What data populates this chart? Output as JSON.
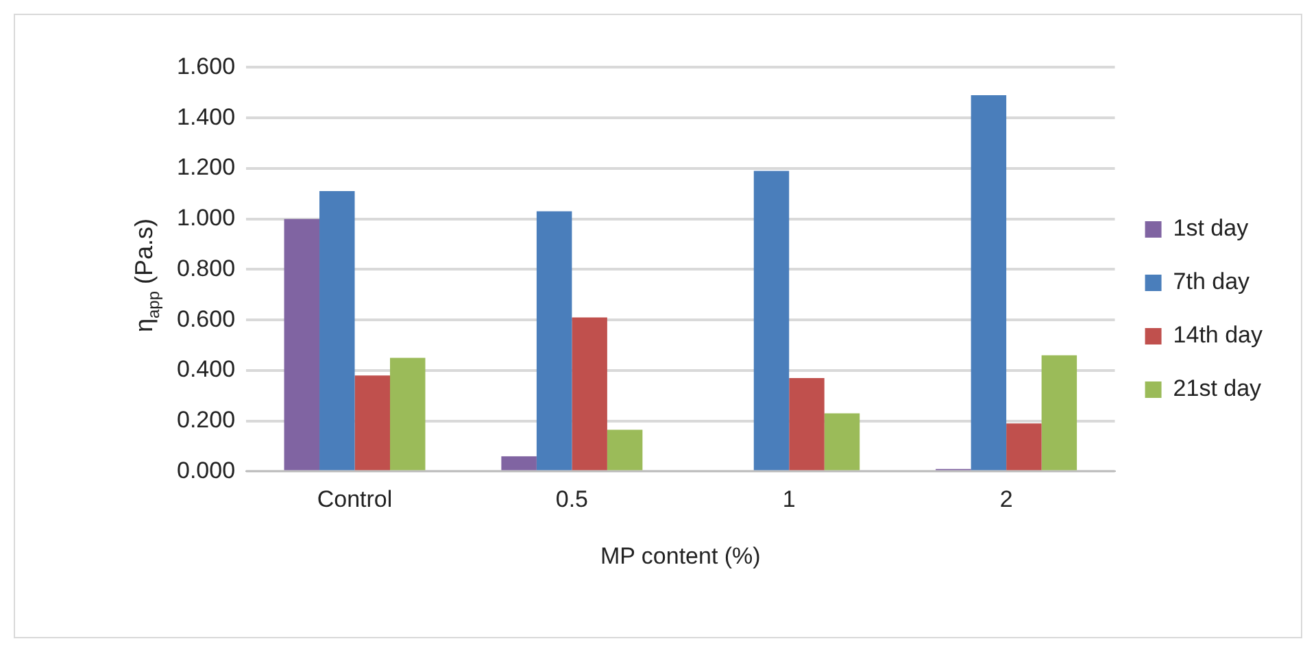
{
  "chart_data": {
    "type": "bar",
    "xlabel": "MP content (%)",
    "ylabel": "η$_{app}$ (Pa.s)",
    "categories": [
      "Control",
      "0.5",
      "1",
      "2"
    ],
    "series": [
      {
        "name": "1st day",
        "color": "#8064a2",
        "values": [
          1.0,
          0.06,
          0.0,
          0.01
        ]
      },
      {
        "name": "7th day",
        "color": "#4a7ebb",
        "values": [
          1.11,
          1.03,
          1.19,
          1.49
        ]
      },
      {
        "name": "14th day",
        "color": "#c0504d",
        "values": [
          0.38,
          0.61,
          0.37,
          0.19
        ]
      },
      {
        "name": "21st day",
        "color": "#9bbb59",
        "values": [
          0.45,
          0.165,
          0.23,
          0.46
        ]
      }
    ],
    "ylim": [
      0,
      1.6
    ],
    "yticks": [
      {
        "value": 0,
        "label": "0.000"
      },
      {
        "value": 0.2,
        "label": "0.200"
      },
      {
        "value": 0.4,
        "label": "0.400"
      },
      {
        "value": 0.6,
        "label": "0.600"
      },
      {
        "value": 0.8,
        "label": "0.800"
      },
      {
        "value": 1.0,
        "label": "1.000"
      },
      {
        "value": 1.2,
        "label": "1.200"
      },
      {
        "value": 1.4,
        "label": "1.400"
      },
      {
        "value": 1.6,
        "label": "1.600"
      }
    ],
    "grid": "y",
    "legend": "right"
  }
}
